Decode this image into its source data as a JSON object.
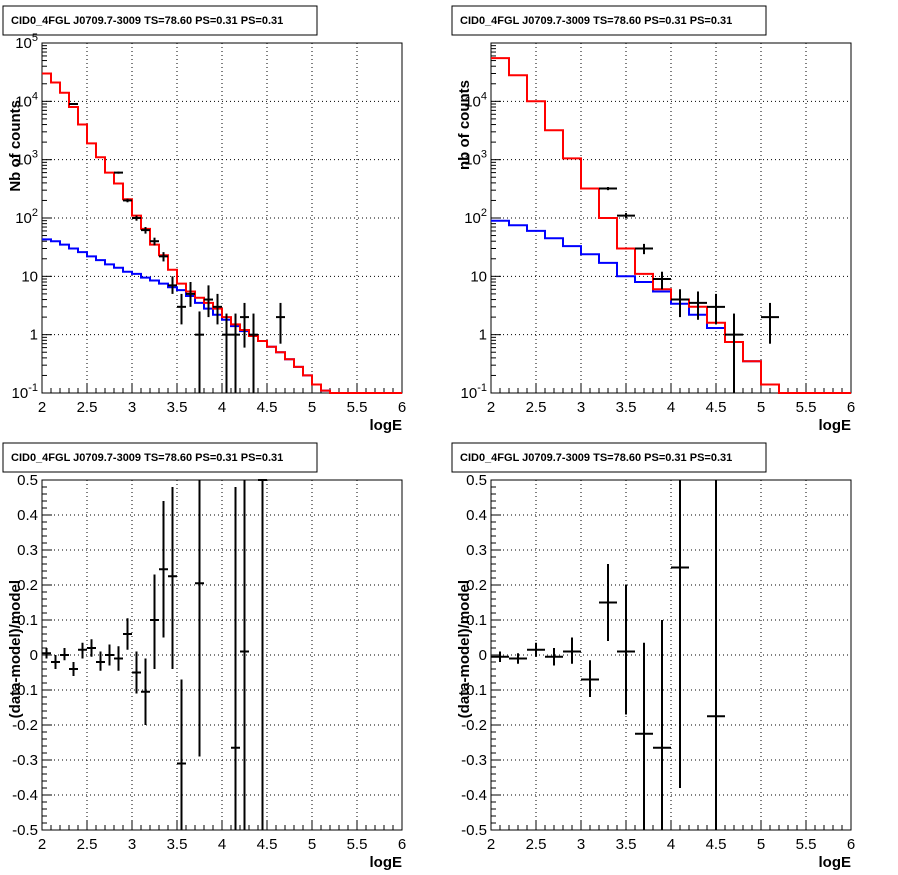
{
  "chart_data": [
    {
      "type": "line",
      "title": "CID0_4FGL J0709.7-3009 TS=78.60 PS=0.31 PS=0.31",
      "xlabel": "logE",
      "ylabel": "Nb of counts",
      "xlim": [
        2,
        6
      ],
      "ylim": [
        0.1,
        100000
      ],
      "yscale": "log",
      "grid": true,
      "xticks": [
        "2",
        "2.5",
        "3",
        "3.5",
        "4",
        "4.5",
        "5",
        "5.5",
        "6"
      ],
      "yticks": [
        "10^-1",
        "1",
        "10",
        "10^2",
        "10^3",
        "10^4",
        "10^5"
      ],
      "edges": [
        2.0,
        2.1,
        2.2,
        2.3,
        2.4,
        2.5,
        2.6,
        2.7,
        2.8,
        2.9,
        3.0,
        3.1,
        3.2,
        3.3,
        3.4,
        3.5,
        3.6,
        3.7,
        3.8,
        3.9,
        4.0,
        4.1,
        4.2,
        4.3,
        4.4,
        4.5,
        4.6,
        4.7,
        4.8,
        4.9,
        5.0,
        5.1,
        5.2,
        5.3,
        5.4,
        5.5,
        5.6,
        5.7,
        5.8,
        5.9,
        6.0
      ],
      "series": [
        {
          "kind": "hist",
          "color": "#0000ff",
          "values": [
            43,
            40,
            35,
            30,
            26,
            22,
            19,
            16,
            14,
            12,
            11,
            9.5,
            8.5,
            7.5,
            6.5,
            5.8,
            4.6,
            3.5,
            2.8,
            2.2,
            1.8,
            1.4,
            1.15,
            0.95,
            0.78,
            0.62,
            0.5,
            0.38,
            0.28,
            0.2,
            0.14,
            0.11,
            0.1,
            0.1,
            0.1,
            0.1,
            0.1,
            0.1,
            0.1,
            0.1
          ]
        },
        {
          "kind": "hist",
          "color": "#ff0000",
          "values": [
            30000,
            21000,
            14000,
            8000,
            4000,
            1900,
            1100,
            600,
            390,
            210,
            110,
            65,
            35,
            23,
            13,
            7.5,
            5.5,
            4.3,
            3.5,
            2.8,
            2.0,
            1.5,
            1.2,
            0.95,
            0.78,
            0.62,
            0.5,
            0.38,
            0.28,
            0.2,
            0.14,
            0.11,
            0.1,
            0.1,
            0.1,
            0.1,
            0.1,
            0.1,
            0.1,
            0.1
          ]
        },
        {
          "kind": "points",
          "color": "#000000",
          "points": [
            {
              "x": 2.35,
              "y": 9000,
              "lo": 8800,
              "hi": 9200
            },
            {
              "x": 2.85,
              "y": 600,
              "lo": 575,
              "hi": 625
            },
            {
              "x": 2.95,
              "y": 200,
              "lo": 186,
              "hi": 214
            },
            {
              "x": 3.05,
              "y": 100,
              "lo": 90,
              "hi": 110
            },
            {
              "x": 3.15,
              "y": 62,
              "lo": 54,
              "hi": 70
            },
            {
              "x": 3.25,
              "y": 40,
              "lo": 34,
              "hi": 46
            },
            {
              "x": 3.35,
              "y": 22,
              "lo": 18,
              "hi": 26
            },
            {
              "x": 3.45,
              "y": 7,
              "lo": 5,
              "hi": 10
            },
            {
              "x": 3.55,
              "y": 3,
              "lo": 1.5,
              "hi": 5
            },
            {
              "x": 3.65,
              "y": 5,
              "lo": 3,
              "hi": 8
            },
            {
              "x": 3.75,
              "y": 1,
              "lo": 0.1,
              "hi": 2.5
            },
            {
              "x": 3.85,
              "y": 4,
              "lo": 2,
              "hi": 7
            },
            {
              "x": 3.95,
              "y": 3,
              "lo": 1.5,
              "hi": 5
            },
            {
              "x": 4.05,
              "y": 1,
              "lo": 0.1,
              "hi": 2.3
            },
            {
              "x": 4.15,
              "y": 1,
              "lo": 0.1,
              "hi": 2.3
            },
            {
              "x": 4.25,
              "y": 2,
              "lo": 0.6,
              "hi": 3.5
            },
            {
              "x": 4.35,
              "y": 1,
              "lo": 0.1,
              "hi": 2.3
            },
            {
              "x": 4.65,
              "y": 2,
              "lo": 0.7,
              "hi": 3.5
            }
          ]
        }
      ]
    },
    {
      "type": "line",
      "title": "CID0_4FGL J0709.7-3009 TS=78.60 PS=0.31 PS=0.31",
      "xlabel": "logE",
      "ylabel": "nb of counts",
      "xlim": [
        2,
        6
      ],
      "ylim": [
        0.1,
        100000
      ],
      "yscale": "log",
      "grid": true,
      "xticks": [
        "2",
        "2.5",
        "3",
        "3.5",
        "4",
        "4.5",
        "5",
        "5.5",
        "6"
      ],
      "yticks": [
        "10^-1",
        "1",
        "10",
        "10^2",
        "10^3",
        "10^4"
      ],
      "edges": [
        2.0,
        2.2,
        2.4,
        2.6,
        2.8,
        3.0,
        3.2,
        3.4,
        3.6,
        3.8,
        4.0,
        4.2,
        4.4,
        4.6,
        4.8,
        5.0,
        5.2,
        5.4,
        5.6,
        5.8,
        6.0
      ],
      "series": [
        {
          "kind": "hist",
          "color": "#0000ff",
          "values": [
            90,
            75,
            60,
            45,
            33,
            24,
            17,
            10,
            8,
            5.5,
            3.4,
            2.2,
            1.3,
            0.75,
            0.35,
            0.14,
            0.1,
            0.1,
            0.1,
            0.1
          ]
        },
        {
          "kind": "hist",
          "color": "#ff0000",
          "values": [
            55000,
            28000,
            10000,
            3200,
            1050,
            320,
            100,
            30,
            11,
            6,
            4,
            3,
            1.6,
            0.75,
            0.35,
            0.14,
            0.1,
            0.1,
            0.1,
            0.1
          ]
        },
        {
          "kind": "points",
          "color": "#000000",
          "points": [
            {
              "x": 3.3,
              "y": 320,
              "lo": 300,
              "hi": 340
            },
            {
              "x": 3.5,
              "y": 110,
              "lo": 98,
              "hi": 122
            },
            {
              "x": 3.7,
              "y": 30,
              "lo": 24,
              "hi": 36
            },
            {
              "x": 3.9,
              "y": 9,
              "lo": 6,
              "hi": 12
            },
            {
              "x": 4.1,
              "y": 4,
              "lo": 2,
              "hi": 6
            },
            {
              "x": 4.3,
              "y": 3.5,
              "lo": 1.8,
              "hi": 5.5
            },
            {
              "x": 4.5,
              "y": 3,
              "lo": 1.5,
              "hi": 5
            },
            {
              "x": 4.7,
              "y": 1,
              "lo": 0.1,
              "hi": 2.3
            },
            {
              "x": 5.1,
              "y": 2,
              "lo": 0.7,
              "hi": 3.5
            }
          ]
        }
      ]
    },
    {
      "type": "scatter",
      "title": "CID0_4FGL J0709.7-3009 TS=78.60 PS=0.31 PS=0.31",
      "xlabel": "logE",
      "ylabel": "(data-model)/model",
      "xlim": [
        2,
        6
      ],
      "ylim": [
        -0.5,
        0.5
      ],
      "yscale": "linear",
      "grid": true,
      "xticks": [
        "2",
        "2.5",
        "3",
        "3.5",
        "4",
        "4.5",
        "5",
        "5.5",
        "6"
      ],
      "yticks": [
        "-0.5",
        "-0.4",
        "-0.3",
        "-0.2",
        "-0.1",
        "0",
        "0.1",
        "0.2",
        "0.3",
        "0.4",
        "0.5"
      ],
      "points": [
        {
          "x": 2.05,
          "y": 0.005,
          "xerr": 0.05,
          "lo": -0.01,
          "hi": 0.02
        },
        {
          "x": 2.15,
          "y": -0.02,
          "xerr": 0.05,
          "lo": -0.04,
          "hi": 0.0
        },
        {
          "x": 2.25,
          "y": 0.0,
          "xerr": 0.05,
          "lo": -0.015,
          "hi": 0.02
        },
        {
          "x": 2.35,
          "y": -0.04,
          "xerr": 0.05,
          "lo": -0.06,
          "hi": -0.02
        },
        {
          "x": 2.45,
          "y": 0.015,
          "xerr": 0.05,
          "lo": -0.01,
          "hi": 0.035
        },
        {
          "x": 2.55,
          "y": 0.02,
          "xerr": 0.05,
          "lo": -0.005,
          "hi": 0.045
        },
        {
          "x": 2.65,
          "y": -0.02,
          "xerr": 0.05,
          "lo": -0.045,
          "hi": 0.01
        },
        {
          "x": 2.75,
          "y": 0.0,
          "xerr": 0.05,
          "lo": -0.03,
          "hi": 0.03
        },
        {
          "x": 2.85,
          "y": -0.01,
          "xerr": 0.05,
          "lo": -0.045,
          "hi": 0.025
        },
        {
          "x": 2.95,
          "y": 0.06,
          "xerr": 0.05,
          "lo": 0.015,
          "hi": 0.105
        },
        {
          "x": 3.05,
          "y": -0.05,
          "xerr": 0.05,
          "lo": -0.11,
          "hi": 0.01
        },
        {
          "x": 3.15,
          "y": -0.105,
          "xerr": 0.05,
          "lo": -0.2,
          "hi": -0.01
        },
        {
          "x": 3.25,
          "y": 0.1,
          "xerr": 0.05,
          "lo": -0.04,
          "hi": 0.23
        },
        {
          "x": 3.35,
          "y": 0.245,
          "xerr": 0.05,
          "lo": 0.05,
          "hi": 0.44
        },
        {
          "x": 3.45,
          "y": 0.225,
          "xerr": 0.05,
          "lo": -0.04,
          "hi": 0.48
        },
        {
          "x": 3.55,
          "y": -0.31,
          "xerr": 0.05,
          "lo": -0.5,
          "hi": -0.07
        },
        {
          "x": 3.75,
          "y": 0.205,
          "xerr": 0.05,
          "lo": -0.29,
          "hi": 0.5
        },
        {
          "x": 4.15,
          "y": -0.265,
          "xerr": 0.05,
          "lo": -0.5,
          "hi": 0.48
        },
        {
          "x": 4.25,
          "y": 0.01,
          "xerr": 0.05,
          "lo": -0.5,
          "hi": 0.5
        },
        {
          "x": 4.45,
          "y": 0.5,
          "xerr": 0.05,
          "lo": -0.5,
          "hi": 0.5
        }
      ]
    },
    {
      "type": "scatter",
      "title": "CID0_4FGL J0709.7-3009 TS=78.60 PS=0.31 PS=0.31",
      "xlabel": "logE",
      "ylabel": "(data-model)/model",
      "xlim": [
        2,
        6
      ],
      "ylim": [
        -0.5,
        0.5
      ],
      "yscale": "linear",
      "grid": true,
      "xticks": [
        "2",
        "2.5",
        "3",
        "3.5",
        "4",
        "4.5",
        "5",
        "5.5",
        "6"
      ],
      "yticks": [
        "-0.5",
        "-0.4",
        "-0.3",
        "-0.2",
        "-0.1",
        "0",
        "0.1",
        "0.2",
        "0.3",
        "0.4",
        "0.5"
      ],
      "points": [
        {
          "x": 2.1,
          "y": -0.005,
          "xerr": 0.1,
          "lo": -0.02,
          "hi": 0.01
        },
        {
          "x": 2.3,
          "y": -0.01,
          "xerr": 0.1,
          "lo": -0.025,
          "hi": 0.005
        },
        {
          "x": 2.5,
          "y": 0.015,
          "xerr": 0.1,
          "lo": -0.005,
          "hi": 0.035
        },
        {
          "x": 2.7,
          "y": -0.005,
          "xerr": 0.1,
          "lo": -0.03,
          "hi": 0.02
        },
        {
          "x": 2.9,
          "y": 0.01,
          "xerr": 0.1,
          "lo": -0.025,
          "hi": 0.05
        },
        {
          "x": 3.1,
          "y": -0.07,
          "xerr": 0.1,
          "lo": -0.12,
          "hi": -0.015
        },
        {
          "x": 3.3,
          "y": 0.15,
          "xerr": 0.1,
          "lo": 0.04,
          "hi": 0.26
        },
        {
          "x": 3.5,
          "y": 0.01,
          "xerr": 0.1,
          "lo": -0.17,
          "hi": 0.2
        },
        {
          "x": 3.7,
          "y": -0.225,
          "xerr": 0.1,
          "lo": -0.5,
          "hi": 0.035
        },
        {
          "x": 3.9,
          "y": -0.265,
          "xerr": 0.1,
          "lo": -0.5,
          "hi": 0.1
        },
        {
          "x": 4.1,
          "y": 0.25,
          "xerr": 0.1,
          "lo": -0.38,
          "hi": 0.5
        },
        {
          "x": 4.5,
          "y": -0.175,
          "xerr": 0.1,
          "lo": -0.5,
          "hi": 0.5
        }
      ]
    }
  ]
}
